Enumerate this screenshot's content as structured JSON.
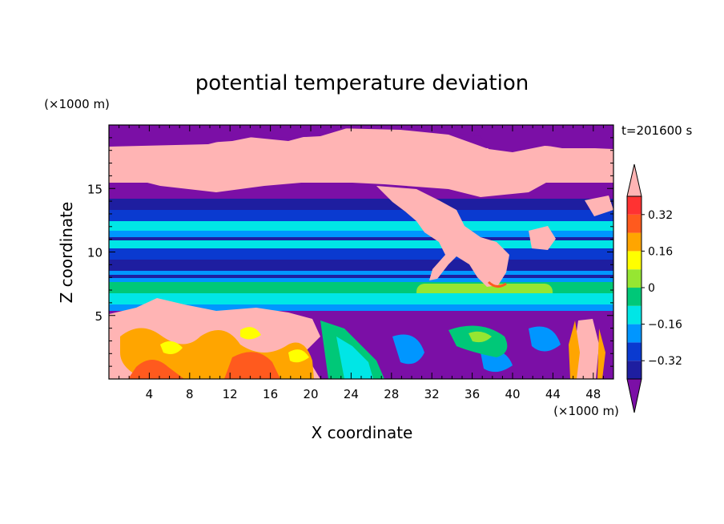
{
  "chart_data": {
    "type": "heatmap",
    "title": "potential temperature deviation",
    "xlabel": "X coordinate",
    "ylabel": "Z coordinate",
    "x_unit": "(×1000 m)",
    "y_unit": "(×1000 m)",
    "time_label": "t=201600 s",
    "xlim": [
      0,
      50
    ],
    "ylim": [
      0,
      20
    ],
    "x_ticks": [
      4,
      8,
      12,
      16,
      20,
      24,
      28,
      32,
      36,
      40,
      44,
      48
    ],
    "y_ticks": [
      5,
      10,
      15
    ],
    "colorbar": {
      "levels": [
        -0.4,
        -0.32,
        -0.24,
        -0.16,
        -0.08,
        0,
        0.08,
        0.16,
        0.24,
        0.32,
        0.4
      ],
      "tick_values": [
        0.32,
        0.16,
        0,
        -0.16,
        -0.32
      ],
      "tick_labels": [
        "0.32",
        "0.16",
        "0",
        "−0.16",
        "−0.32"
      ],
      "colors": [
        "#7b0fa6",
        "#1e1ea0",
        "#0a3ad0",
        "#0096ff",
        "#00e6e6",
        "#00c878",
        "#96e632",
        "#ffff00",
        "#ffa500",
        "#ff5a1e",
        "#ff3232",
        "#ffb4b4"
      ],
      "extend": "both"
    },
    "layers": [
      {
        "z_range": [
          0,
          1.5
        ],
        "value": "< -0.40",
        "note": "lower turbulent region, mixed"
      },
      {
        "z_range": [
          5.5,
          7.2
        ],
        "value": -0.16
      },
      {
        "z_range": [
          7.2,
          8.0
        ],
        "value": 0.0
      },
      {
        "z_range": [
          8.0,
          9.0
        ],
        "value": -0.32
      },
      {
        "z_range": [
          9.0,
          12.0
        ],
        "value": -0.24
      },
      {
        "z_range": [
          12.0,
          14.0
        ],
        "value": -0.32
      },
      {
        "z_range": [
          14.0,
          18.0
        ],
        "value": "> 0.40"
      },
      {
        "z_range": [
          18.0,
          20.0
        ],
        "value": "< -0.40"
      }
    ]
  }
}
